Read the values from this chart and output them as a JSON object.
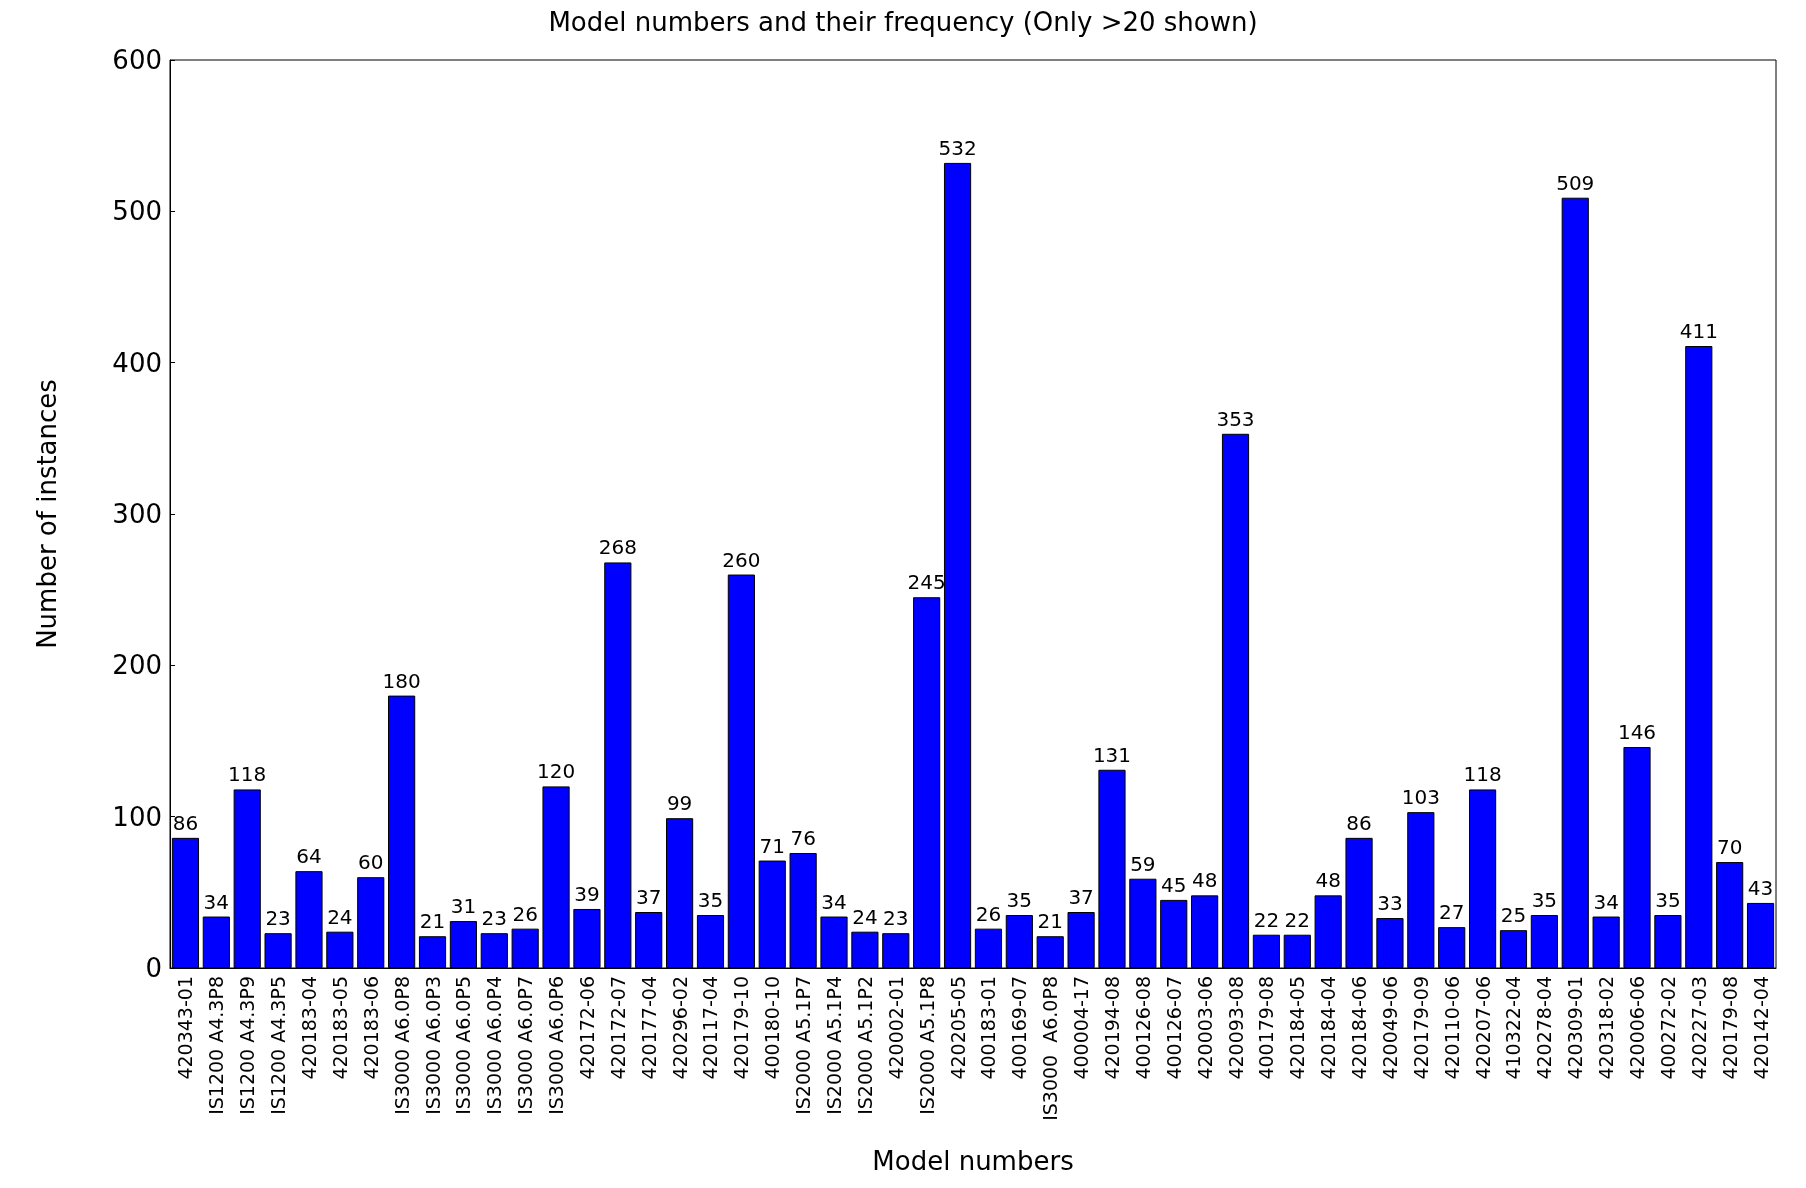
{
  "chart_data": {
    "type": "bar",
    "title": "Model numbers and their frequency (Only >20 shown)",
    "xlabel": "Model numbers",
    "ylabel": "Number of instances",
    "categories": [
      "420343-01",
      "IS1200 A4.3P8",
      "IS1200 A4.3P9",
      "IS1200 A4.3P5",
      "420183-04",
      "420183-05",
      "420183-06",
      "IS3000 A6.0P8",
      "IS3000 A6.0P3",
      "IS3000 A6.0P5",
      "IS3000 A6.0P4",
      "IS3000 A6.0P7",
      "IS3000 A6.0P6",
      "420172-06",
      "420172-07",
      "420177-04",
      "420296-02",
      "420117-04",
      "420179-10",
      "400180-10",
      "IS2000 A5.1P7",
      "IS2000 A5.1P4",
      "IS2000 A5.1P2",
      "420002-01",
      "IS2000 A5.1P8",
      "420205-05",
      "400183-01",
      "400169-07",
      "IS3000  A6.0P8",
      "400004-17",
      "420194-08",
      "400126-08",
      "400126-07",
      "420003-06",
      "420093-08",
      "400179-08",
      "420184-05",
      "420184-04",
      "420184-06",
      "420049-06",
      "420179-09",
      "420110-06",
      "420207-06",
      "410322-04",
      "420278-04",
      "420309-01",
      "420318-02",
      "420006-06",
      "400272-02",
      "420227-03",
      "420179-08",
      "420142-04"
    ],
    "values": [
      86,
      34,
      118,
      23,
      64,
      24,
      60,
      180,
      21,
      31,
      23,
      26,
      120,
      39,
      268,
      37,
      99,
      35,
      260,
      71,
      76,
      34,
      24,
      23,
      245,
      532,
      26,
      35,
      21,
      37,
      131,
      59,
      45,
      48,
      353,
      22,
      22,
      48,
      86,
      33,
      103,
      27,
      118,
      25,
      35,
      509,
      34,
      146,
      35,
      411,
      70,
      43
    ],
    "color": "#0000ff",
    "ylim": [
      0,
      600
    ],
    "yticks": [
      0,
      100,
      200,
      300,
      400,
      500,
      600
    ],
    "data_labels": true
  }
}
